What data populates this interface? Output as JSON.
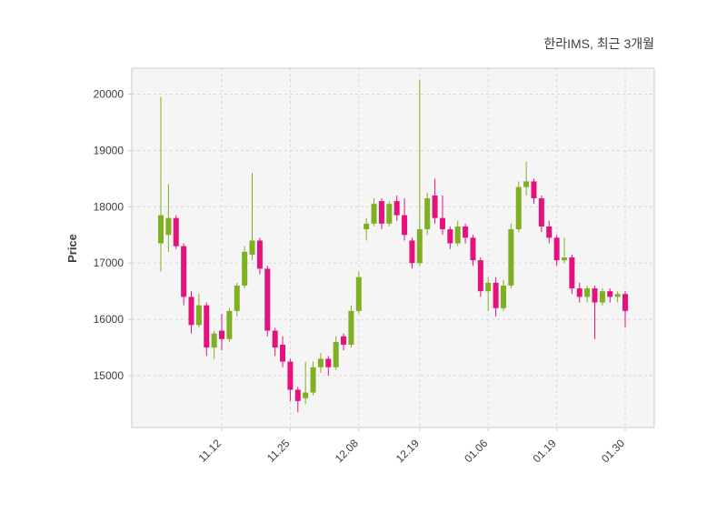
{
  "chart_data": {
    "type": "candlestick",
    "title": "한라IMS, 최근 3개월",
    "ylabel": "Price",
    "xlabel": "",
    "grid": "dashed",
    "legend": "none",
    "ylim": [
      14080,
      20460
    ],
    "y_ticks": [
      15000,
      16000,
      17000,
      18000,
      19000,
      20000
    ],
    "x_ticks": [
      {
        "index": 8,
        "label": "11.12"
      },
      {
        "index": 17,
        "label": "11.25"
      },
      {
        "index": 26,
        "label": "12.08"
      },
      {
        "index": 34,
        "label": "12.19"
      },
      {
        "index": 43,
        "label": "01.06"
      },
      {
        "index": 52,
        "label": "01.19"
      },
      {
        "index": 61,
        "label": "01.30"
      }
    ],
    "colors": {
      "up": "#7eb021",
      "down": "#e5127d",
      "grid": "#d9d9d9",
      "plot_bg": "#f5f5f5",
      "spine": "#cccccc",
      "text": "#3d3d3d"
    },
    "candles_format": [
      "open",
      "high",
      "low",
      "close"
    ],
    "candles": [
      [
        17350,
        19950,
        16850,
        17850
      ],
      [
        17500,
        18400,
        17200,
        17800
      ],
      [
        17800,
        17850,
        17250,
        17300
      ],
      [
        17300,
        17350,
        16250,
        16400
      ],
      [
        16400,
        16500,
        15750,
        15900
      ],
      [
        15900,
        16450,
        15850,
        16250
      ],
      [
        16250,
        16300,
        15350,
        15500
      ],
      [
        15500,
        15800,
        15300,
        15750
      ],
      [
        15800,
        16100,
        15450,
        15650
      ],
      [
        15650,
        16200,
        15600,
        16150
      ],
      [
        16150,
        16650,
        16050,
        16600
      ],
      [
        16600,
        17300,
        16550,
        17200
      ],
      [
        17150,
        18600,
        17050,
        17400
      ],
      [
        17400,
        17450,
        16800,
        16900
      ],
      [
        16900,
        16950,
        15700,
        15800
      ],
      [
        15800,
        15850,
        15350,
        15500
      ],
      [
        15550,
        15700,
        15150,
        15250
      ],
      [
        15250,
        15300,
        14550,
        14750
      ],
      [
        14750,
        14800,
        14350,
        14550
      ],
      [
        14600,
        15250,
        14500,
        14700
      ],
      [
        14700,
        15250,
        14650,
        15150
      ],
      [
        15150,
        15400,
        15050,
        15300
      ],
      [
        15300,
        15350,
        15000,
        15150
      ],
      [
        15150,
        15700,
        15100,
        15600
      ],
      [
        15700,
        15750,
        15450,
        15550
      ],
      [
        15550,
        16250,
        15500,
        16150
      ],
      [
        16150,
        16850,
        16100,
        16750
      ],
      [
        17600,
        17800,
        17400,
        17700
      ],
      [
        17700,
        18150,
        17650,
        18050
      ],
      [
        18100,
        18150,
        17600,
        17700
      ],
      [
        17700,
        18100,
        17650,
        18050
      ],
      [
        18100,
        18200,
        17750,
        17850
      ],
      [
        17850,
        18150,
        17400,
        17500
      ],
      [
        17400,
        17450,
        16900,
        17000
      ],
      [
        17000,
        20250,
        16950,
        17600
      ],
      [
        17600,
        18250,
        17500,
        18150
      ],
      [
        18200,
        18500,
        17700,
        17800
      ],
      [
        17800,
        18200,
        17500,
        17600
      ],
      [
        17600,
        17650,
        17250,
        17350
      ],
      [
        17350,
        17750,
        17300,
        17650
      ],
      [
        17650,
        17700,
        17350,
        17450
      ],
      [
        17450,
        17500,
        16950,
        17050
      ],
      [
        17050,
        17100,
        16400,
        16500
      ],
      [
        16500,
        16750,
        16150,
        16650
      ],
      [
        16650,
        16750,
        16050,
        16200
      ],
      [
        16200,
        16700,
        16150,
        16600
      ],
      [
        16600,
        17700,
        16550,
        17600
      ],
      [
        17600,
        18450,
        17550,
        18350
      ],
      [
        18350,
        18800,
        18200,
        18450
      ],
      [
        18450,
        18500,
        18050,
        18150
      ],
      [
        18150,
        18200,
        17550,
        17650
      ],
      [
        17650,
        17750,
        17350,
        17450
      ],
      [
        17450,
        17500,
        16950,
        17050
      ],
      [
        17050,
        17450,
        17000,
        17100
      ],
      [
        17100,
        17150,
        16450,
        16550
      ],
      [
        16550,
        16650,
        16300,
        16400
      ],
      [
        16400,
        16600,
        16300,
        16550
      ],
      [
        16550,
        16600,
        15650,
        16300
      ],
      [
        16300,
        16550,
        16250,
        16500
      ],
      [
        16500,
        16550,
        16300,
        16400
      ],
      [
        16400,
        16500,
        16300,
        16450
      ],
      [
        16450,
        16500,
        15850,
        16150
      ]
    ]
  }
}
